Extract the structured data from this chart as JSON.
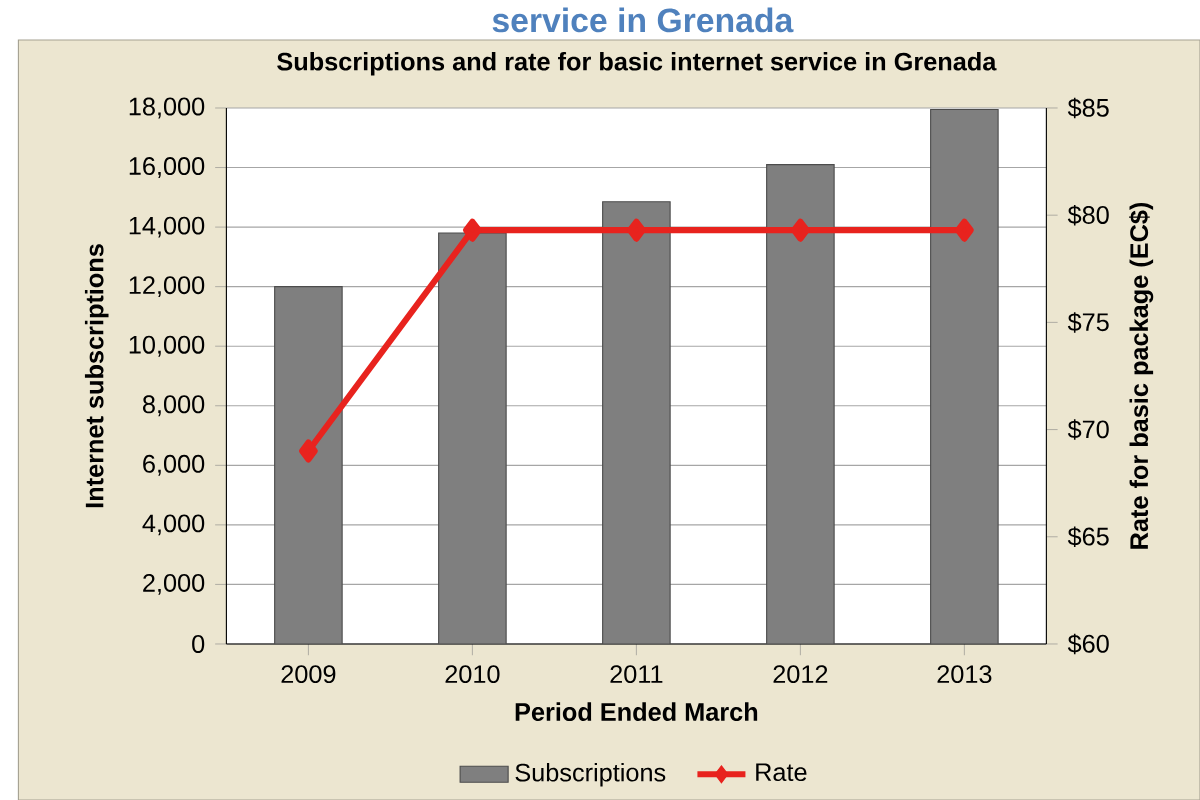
{
  "chart_data": {
    "type": "bar",
    "title": "Subscriptions and rate for basic internet service in Grenada",
    "annotations": [
      "service in Grenada"
    ],
    "xlabel": "Period Ended March",
    "ylabel": "Internet subscriptions",
    "y2label": "Rate for basic package (EC$)",
    "categories": [
      "2009",
      "2010",
      "2011",
      "2012",
      "2013"
    ],
    "series": [
      {
        "name": "Subscriptions",
        "color": "#7f7f7f",
        "values": [
          12000,
          13800,
          14850,
          16100,
          17950
        ]
      },
      {
        "name": "Rate",
        "type": "line",
        "axis": "y2",
        "color": "#e8231e",
        "values": [
          69,
          79.3,
          79.3,
          79.3,
          79.3
        ]
      }
    ],
    "ylim": [
      0,
      18000
    ],
    "yticks": [
      {
        "value": 0,
        "label": "0"
      },
      {
        "value": 2000,
        "label": "2,000"
      },
      {
        "value": 4000,
        "label": "4,000"
      },
      {
        "value": 6000,
        "label": "6,000"
      },
      {
        "value": 8000,
        "label": "8,000"
      },
      {
        "value": 10000,
        "label": "10,000"
      },
      {
        "value": 12000,
        "label": "12,000"
      },
      {
        "value": 14000,
        "label": "14,000"
      },
      {
        "value": 16000,
        "label": "16,000"
      },
      {
        "value": 18000,
        "label": "18,000"
      }
    ],
    "y2lim": [
      60,
      85
    ],
    "y2ticks": [
      {
        "value": 60,
        "label": "$60"
      },
      {
        "value": 65,
        "label": "$65"
      },
      {
        "value": 70,
        "label": "$70"
      },
      {
        "value": 75,
        "label": "$75"
      },
      {
        "value": 80,
        "label": "$80"
      },
      {
        "value": 85,
        "label": "$85"
      }
    ],
    "grid": "y",
    "legend": "bottom",
    "marker": "diamond",
    "line_style": "solid"
  }
}
